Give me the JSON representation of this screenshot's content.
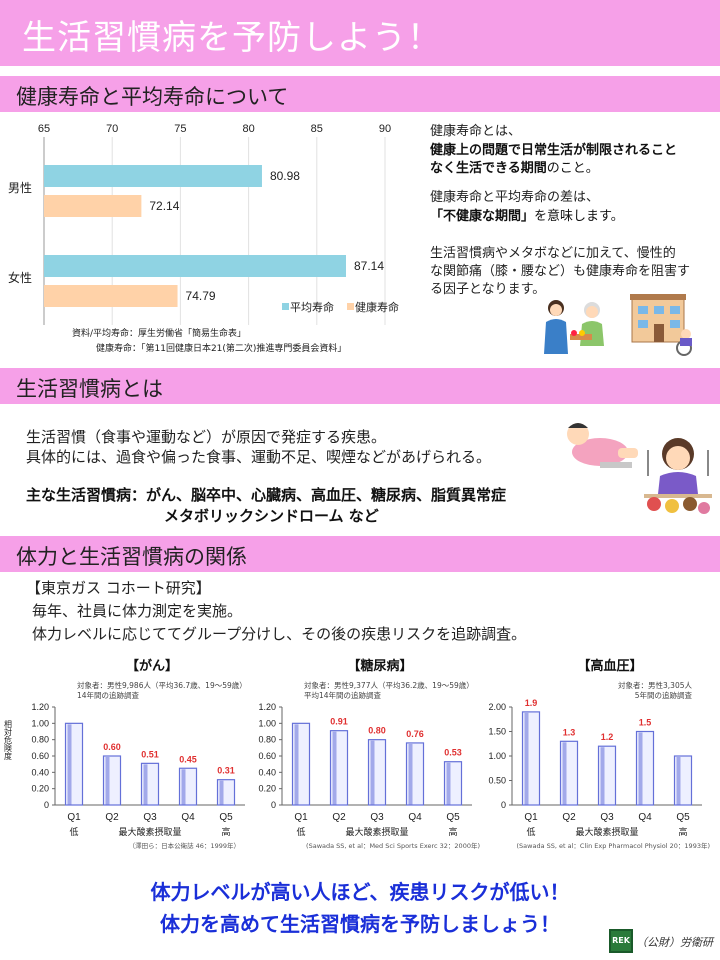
{
  "header": {
    "title": "生活習慣病を予防しよう！"
  },
  "section1": {
    "title": "健康寿命と平均寿命について",
    "note1": "健康寿命とは、",
    "note1_bold1": "健康上の問題で日常生活が制限されること",
    "note1_bold2": "なく生活できる期間",
    "note1_tail": "のこと。",
    "note2": "健康寿命と平均寿命の差は、",
    "note2_bold": "「不健康な期間」",
    "note2_tail": "を意味します。",
    "note3_l1": "生活習慣病やメタボなどに加えて、慢性的",
    "note3_l2": "な関節痛（膝・腰など）も健康寿命を阻害す",
    "note3_l3": "る因子となります。",
    "source_l1": "資料/平均寿命：厚生労働省「簡易生命表」",
    "source_l2": "健康寿命：「第11回健康日本21(第二次)推進専門委員会資料」"
  },
  "section2": {
    "title": "生活習慣病とは",
    "l1": "生活習慣（食事や運動など）が原因で発症する疾患。",
    "l2": "具体的には、過食や偏った食事、運動不足、喫煙などがあげられる。",
    "main_l1": "主な生活習慣病：がん、脳卒中、心臓病、高血圧、糖尿病、脂質異常症",
    "main_l2": "メタボリックシンドローム など"
  },
  "section3": {
    "title": "体力と生活習慣病の関係",
    "study": "【東京ガス コホート研究】",
    "l1": "毎年、社員に体力測定を実施。",
    "l2": "体力レベルに応じててグループ分けし、その後の疾患リスクを追跡調査。",
    "ylabel": "相対危険度"
  },
  "footer": {
    "msg1": "体力レベルが高い人ほど、疾患リスクが低い！",
    "msg2": "体力を高めて生活習慣病を予防しましょう！",
    "logo": "REK",
    "org": "（公財）労衛研"
  },
  "colors": {
    "pink": "#f6a0e8",
    "avg": "#8fd3e3",
    "healthy": "#ffd2a8",
    "bar_blue": "#6470d8",
    "red": "#e03030",
    "msg": "#1a2fd8"
  },
  "chart_data": [
    {
      "type": "bar",
      "orientation": "horizontal",
      "categories": [
        "男性",
        "女性"
      ],
      "series": [
        {
          "name": "平均寿命",
          "values": [
            80.98,
            87.14
          ]
        },
        {
          "name": "健康寿命",
          "values": [
            72.14,
            74.79
          ]
        }
      ],
      "xlim": [
        65,
        90
      ],
      "xticks": [
        "65",
        "70",
        "75",
        "80",
        "85",
        "90"
      ],
      "legend": "bottom-right"
    },
    {
      "type": "bar",
      "title": "【がん】",
      "categories": [
        "Q1",
        "Q2",
        "Q3",
        "Q4",
        "Q5"
      ],
      "cat_sub": [
        "低",
        "",
        "",
        "",
        "高"
      ],
      "values": [
        1.0,
        0.6,
        0.51,
        0.45,
        0.31
      ],
      "labels": [
        "",
        "0.60",
        "0.51",
        "0.45",
        "0.31"
      ],
      "ylim": [
        0,
        1.2
      ],
      "yticks": [
        "0",
        "0.20",
        "0.40",
        "0.60",
        "0.80",
        "1.00",
        "1.20"
      ],
      "xlabel": "最大酸素摂取量",
      "subject_l1": "対象者：男性9,986人（平均36.7歳、19～59歳）",
      "subject_l2": "14年間の追跡調査",
      "cite": "（澤田ら：日本公衛誌 46：1999年）"
    },
    {
      "type": "bar",
      "title": "【糖尿病】",
      "categories": [
        "Q1",
        "Q2",
        "Q3",
        "Q4",
        "Q5"
      ],
      "cat_sub": [
        "低",
        "",
        "",
        "",
        "高"
      ],
      "values": [
        1.0,
        0.91,
        0.8,
        0.76,
        0.53
      ],
      "labels": [
        "",
        "0.91",
        "0.80",
        "0.76",
        "0.53"
      ],
      "ylim": [
        0,
        1.2
      ],
      "yticks": [
        "0",
        "0.20",
        "0.40",
        "0.60",
        "0.80",
        "1.00",
        "1.20"
      ],
      "xlabel": "最大酸素摂取量",
      "subject_l1": "対象者：男性9,377人（平均36.2歳、19～59歳）",
      "subject_l2": "平均14年間の追跡調査",
      "cite": "(Sawada SS, et al：Med Sci Sports Exerc 32：2000年)"
    },
    {
      "type": "bar",
      "title": "【高血圧】",
      "categories": [
        "Q1",
        "Q2",
        "Q3",
        "Q4",
        "Q5"
      ],
      "cat_sub": [
        "低",
        "",
        "",
        "",
        "高"
      ],
      "values": [
        1.9,
        1.3,
        1.2,
        1.5,
        1.0
      ],
      "labels": [
        "1.9",
        "1.3",
        "1.2",
        "1.5",
        ""
      ],
      "ylim": [
        0,
        2.0
      ],
      "yticks": [
        "0",
        "0.50",
        "1.00",
        "1.50",
        "2.00"
      ],
      "xlabel": "最大酸素摂取量",
      "subject_l1": "対象者：男性3,305人",
      "subject_l2": "5年間の追跡調査",
      "cite": "(Sawada SS, et al：Clin Exp Pharmacol Physiol 20：1993年)"
    }
  ]
}
